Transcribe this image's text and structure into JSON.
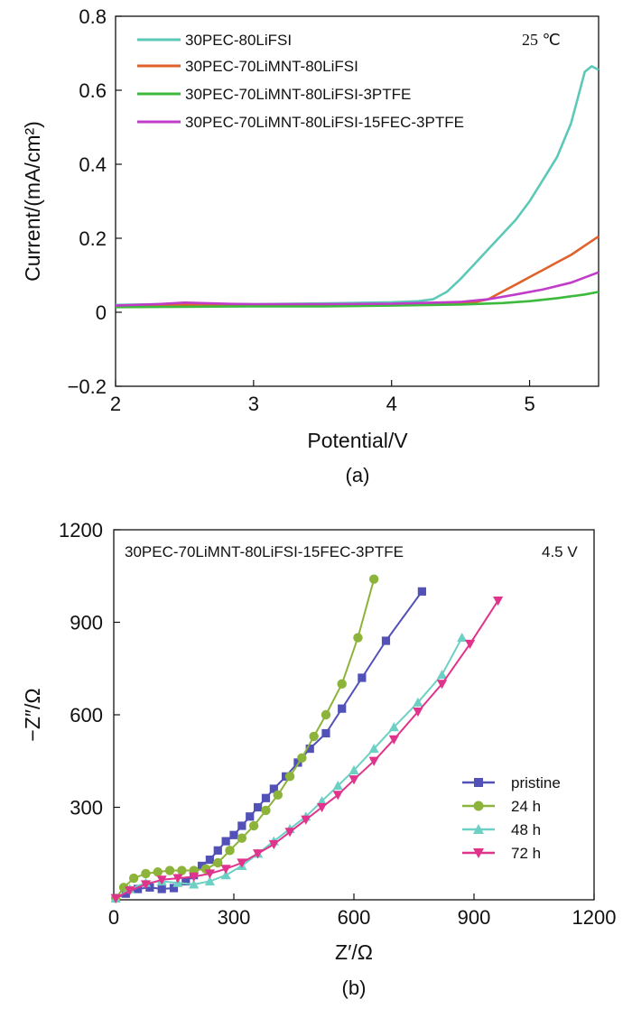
{
  "chart_data": [
    {
      "type": "line",
      "caption": "(a)",
      "xlabel": "Potential/V",
      "ylabel": "Current/(mA/cm²)",
      "xlim": [
        2,
        5.5
      ],
      "ylim": [
        -0.2,
        0.8
      ],
      "xticks": [
        "2",
        "3",
        "4",
        "5"
      ],
      "xtick_values": [
        2,
        3,
        4,
        5
      ],
      "yticks": [
        "−0.2",
        "0",
        "0.2",
        "0.4",
        "0.6",
        "0.8"
      ],
      "ytick_values": [
        -0.2,
        0,
        0.2,
        0.4,
        0.6,
        0.8
      ],
      "annotation": "25 ℃",
      "legend_position": "top-left",
      "grid": false,
      "series": [
        {
          "name": "30PEC-80LiFSI",
          "color": "#5cc9b8",
          "x": [
            2.0,
            2.5,
            3.0,
            3.5,
            4.0,
            4.2,
            4.3,
            4.4,
            4.5,
            4.6,
            4.7,
            4.8,
            4.9,
            5.0,
            5.1,
            5.2,
            5.3,
            5.35,
            5.4,
            5.45,
            5.5
          ],
          "y": [
            0.02,
            0.023,
            0.022,
            0.024,
            0.027,
            0.03,
            0.035,
            0.055,
            0.09,
            0.13,
            0.17,
            0.21,
            0.25,
            0.3,
            0.36,
            0.42,
            0.51,
            0.58,
            0.65,
            0.665,
            0.655
          ]
        },
        {
          "name": "30PEC-70LiMNT-80LiFSI",
          "color": "#e0622a",
          "x": [
            2.0,
            2.5,
            3.0,
            3.5,
            4.0,
            4.5,
            4.6,
            4.7,
            4.8,
            4.9,
            5.0,
            5.1,
            5.2,
            5.3,
            5.4,
            5.5
          ],
          "y": [
            0.016,
            0.02,
            0.02,
            0.02,
            0.022,
            0.025,
            0.027,
            0.035,
            0.055,
            0.075,
            0.095,
            0.115,
            0.135,
            0.155,
            0.18,
            0.205
          ]
        },
        {
          "name": "30PEC-70LiMNT-80LiFSI-3PTFE",
          "color": "#3dba3d",
          "x": [
            2.0,
            2.5,
            3.0,
            3.5,
            4.0,
            4.5,
            4.8,
            5.0,
            5.2,
            5.4,
            5.5
          ],
          "y": [
            0.014,
            0.015,
            0.016,
            0.016,
            0.018,
            0.021,
            0.025,
            0.03,
            0.038,
            0.048,
            0.055
          ]
        },
        {
          "name": "30PEC-70LiMNT-80LiFSI-15FEC-3PTFE",
          "color": "#c13cc8",
          "x": [
            2.0,
            2.3,
            2.5,
            2.8,
            3.0,
            3.5,
            4.0,
            4.5,
            4.7,
            4.9,
            5.1,
            5.3,
            5.5
          ],
          "y": [
            0.018,
            0.022,
            0.026,
            0.023,
            0.022,
            0.022,
            0.023,
            0.028,
            0.035,
            0.048,
            0.062,
            0.08,
            0.108
          ]
        }
      ]
    },
    {
      "type": "scatter",
      "caption": "(b)",
      "xlabel": "Z′/Ω",
      "ylabel": "−Z″/Ω",
      "xlim": [
        0,
        1200
      ],
      "ylim": [
        0,
        1200
      ],
      "xticks": [
        "0",
        "300",
        "600",
        "900",
        "1200"
      ],
      "xtick_values": [
        0,
        300,
        600,
        900,
        1200
      ],
      "yticks": [
        "300",
        "600",
        "900",
        "1200"
      ],
      "ytick_values": [
        300,
        600,
        900,
        1200
      ],
      "title": "30PEC-70LiMNT-80LiFSI-15FEC-3PTFE",
      "annotation": "4.5 V",
      "legend_position": "bottom-right",
      "grid": false,
      "series": [
        {
          "name": "pristine",
          "color": "#5151b8",
          "marker": "square",
          "x": [
            5,
            30,
            60,
            90,
            120,
            150,
            180,
            200,
            220,
            240,
            260,
            280,
            300,
            320,
            340,
            360,
            380,
            400,
            430,
            460,
            490,
            530,
            570,
            620,
            680,
            770
          ],
          "y": [
            5,
            20,
            35,
            40,
            35,
            38,
            60,
            80,
            110,
            130,
            160,
            190,
            210,
            240,
            270,
            300,
            330,
            360,
            400,
            445,
            490,
            540,
            620,
            720,
            840,
            1000
          ]
        },
        {
          "name": "24 h",
          "color": "#8cb33a",
          "marker": "circle",
          "x": [
            5,
            25,
            50,
            80,
            110,
            140,
            170,
            200,
            230,
            260,
            290,
            320,
            350,
            380,
            410,
            440,
            470,
            500,
            530,
            570,
            610,
            650
          ],
          "y": [
            5,
            40,
            70,
            85,
            90,
            95,
            95,
            95,
            100,
            120,
            160,
            200,
            240,
            290,
            340,
            400,
            460,
            530,
            600,
            700,
            850,
            1040
          ]
        },
        {
          "name": "48 h",
          "color": "#6cd1c4",
          "marker": "triangle-up",
          "x": [
            5,
            40,
            80,
            120,
            160,
            200,
            240,
            280,
            320,
            360,
            400,
            440,
            480,
            520,
            560,
            600,
            650,
            700,
            760,
            820,
            870
          ],
          "y": [
            5,
            35,
            55,
            60,
            55,
            50,
            60,
            80,
            110,
            150,
            190,
            230,
            270,
            320,
            370,
            420,
            490,
            560,
            640,
            730,
            850
          ]
        },
        {
          "name": "72 h",
          "color": "#e0348c",
          "marker": "triangle-down",
          "x": [
            5,
            40,
            80,
            120,
            160,
            200,
            240,
            280,
            320,
            360,
            400,
            440,
            480,
            520,
            560,
            600,
            650,
            700,
            760,
            820,
            890,
            960
          ],
          "y": [
            5,
            30,
            50,
            65,
            70,
            75,
            85,
            100,
            120,
            150,
            180,
            220,
            260,
            300,
            340,
            390,
            450,
            520,
            610,
            700,
            830,
            970
          ]
        }
      ]
    }
  ]
}
